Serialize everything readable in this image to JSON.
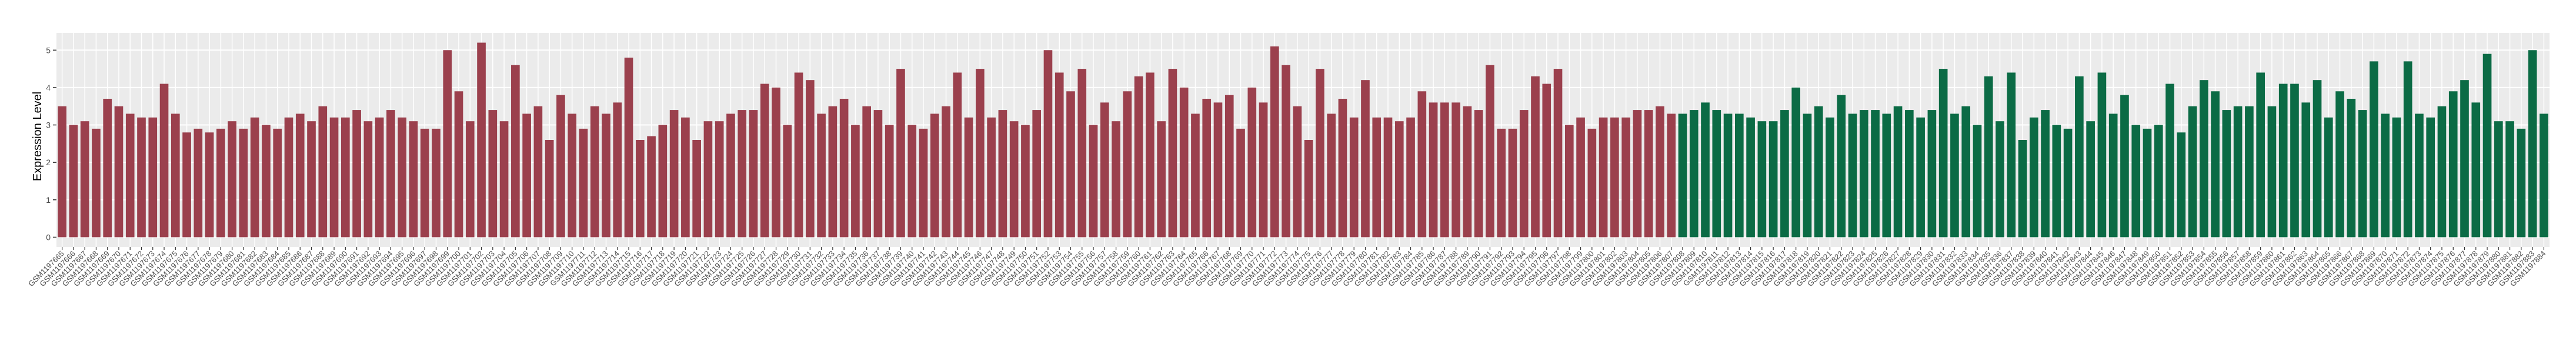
{
  "chart_data": {
    "type": "bar",
    "y_label": "Expression Level",
    "ylim": [
      -0.26,
      5.46
    ],
    "yticks": [
      0,
      1,
      2,
      3,
      4,
      5
    ],
    "grid": true,
    "panel_color": "#ebebeb",
    "series": [
      {
        "color": "#9b404d",
        "categories": [
          "GSM1197665",
          "GSM1197666",
          "GSM1197667",
          "GSM1197668",
          "GSM1197669",
          "GSM1197670",
          "GSM1197671",
          "GSM1197672",
          "GSM1197673",
          "GSM1197674",
          "GSM1197675",
          "GSM1197676",
          "GSM1197677",
          "GSM1197678",
          "GSM1197679",
          "GSM1197680",
          "GSM1197681",
          "GSM1197682",
          "GSM1197683",
          "GSM1197684",
          "GSM1197685",
          "GSM1197686",
          "GSM1197687",
          "GSM1197688",
          "GSM1197689",
          "GSM1197690",
          "GSM1197691",
          "GSM1197692",
          "GSM1197693",
          "GSM1197694",
          "GSM1197695",
          "GSM1197696",
          "GSM1197697",
          "GSM1197698",
          "GSM1197699",
          "GSM1197700",
          "GSM1197701",
          "GSM1197702",
          "GSM1197703",
          "GSM1197704",
          "GSM1197705",
          "GSM1197706",
          "GSM1197707",
          "GSM1197708",
          "GSM1197709",
          "GSM1197710",
          "GSM1197711",
          "GSM1197712",
          "GSM1197713",
          "GSM1197714",
          "GSM1197715",
          "GSM1197716",
          "GSM1197717",
          "GSM1197718",
          "GSM1197719",
          "GSM1197720",
          "GSM1197721",
          "GSM1197722",
          "GSM1197723",
          "GSM1197724",
          "GSM1197725",
          "GSM1197726",
          "GSM1197727",
          "GSM1197728",
          "GSM1197729",
          "GSM1197730",
          "GSM1197731",
          "GSM1197732",
          "GSM1197733",
          "GSM1197734",
          "GSM1197735",
          "GSM1197736",
          "GSM1197737",
          "GSM1197738",
          "GSM1197739",
          "GSM1197740",
          "GSM1197741",
          "GSM1197742",
          "GSM1197743",
          "GSM1197744",
          "GSM1197745",
          "GSM1197746",
          "GSM1197747",
          "GSM1197748",
          "GSM1197749",
          "GSM1197750",
          "GSM1197751",
          "GSM1197752",
          "GSM1197753",
          "GSM1197754",
          "GSM1197755",
          "GSM1197756",
          "GSM1197757",
          "GSM1197758",
          "GSM1197759",
          "GSM1197760",
          "GSM1197761",
          "GSM1197762",
          "GSM1197763",
          "GSM1197764",
          "GSM1197765",
          "GSM1197766",
          "GSM1197767",
          "GSM1197768",
          "GSM1197769",
          "GSM1197770",
          "GSM1197771",
          "GSM1197772",
          "GSM1197773",
          "GSM1197774",
          "GSM1197775",
          "GSM1197776",
          "GSM1197777",
          "GSM1197778",
          "GSM1197779",
          "GSM1197780",
          "GSM1197781",
          "GSM1197782",
          "GSM1197783",
          "GSM1197784",
          "GSM1197785",
          "GSM1197786",
          "GSM1197787",
          "GSM1197788",
          "GSM1197789",
          "GSM1197790",
          "GSM1197791",
          "GSM1197792",
          "GSM1197793",
          "GSM1197794",
          "GSM1197795",
          "GSM1197796",
          "GSM1197797",
          "GSM1197798",
          "GSM1197799",
          "GSM1197800",
          "GSM1197801",
          "GSM1197802",
          "GSM1197803",
          "GSM1197804",
          "GSM1197805",
          "GSM1197806",
          "GSM1197807"
        ],
        "values": [
          3.5,
          3.0,
          3.1,
          2.9,
          3.7,
          3.5,
          3.3,
          3.2,
          3.2,
          4.1,
          3.3,
          2.8,
          2.9,
          2.8,
          2.9,
          3.1,
          2.9,
          3.2,
          3.0,
          2.9,
          3.2,
          3.3,
          3.1,
          3.5,
          3.2,
          3.2,
          3.4,
          3.1,
          3.2,
          3.4,
          3.2,
          3.1,
          2.9,
          2.9,
          5.0,
          3.9,
          3.1,
          5.2,
          3.4,
          3.1,
          4.6,
          3.3,
          3.5,
          2.6,
          3.8,
          3.3,
          2.9,
          3.5,
          3.3,
          3.6,
          4.8,
          2.6,
          2.7,
          3.0,
          3.4,
          3.2,
          2.6,
          3.1,
          3.1,
          3.3,
          3.4,
          3.4,
          4.1,
          4.0,
          3.0,
          4.4,
          4.2,
          3.3,
          3.5,
          3.7,
          3.0,
          3.5,
          3.4,
          3.0,
          4.5,
          3.0,
          2.9,
          3.3,
          3.5,
          4.4,
          3.2,
          4.5,
          3.2,
          3.4,
          3.1,
          3.0,
          3.4,
          5.0,
          4.4,
          3.9,
          4.5,
          3.0,
          3.6,
          3.1,
          3.9,
          4.3,
          4.4,
          3.1,
          4.5,
          4.0,
          3.3,
          3.7,
          3.6,
          3.8,
          2.9,
          4.0,
          3.6,
          5.1,
          4.6,
          3.5,
          2.6,
          4.5,
          3.3,
          3.7,
          3.2,
          4.2,
          3.2,
          3.2,
          3.1,
          3.2,
          3.9,
          3.6,
          3.6,
          3.6,
          3.5,
          3.4,
          4.6,
          2.9,
          2.9,
          3.4,
          4.3,
          4.1,
          4.5,
          3.0,
          3.2,
          2.9,
          3.2,
          3.2,
          3.2,
          3.4,
          3.4,
          3.5,
          3.3
        ]
      },
      {
        "color": "#0b6b45",
        "categories": [
          "GSM1197808",
          "GSM1197809",
          "GSM1197810",
          "GSM1197811",
          "GSM1197812",
          "GSM1197813",
          "GSM1197814",
          "GSM1197815",
          "GSM1197816",
          "GSM1197817",
          "GSM1197818",
          "GSM1197819",
          "GSM1197820",
          "GSM1197821",
          "GSM1197822",
          "GSM1197823",
          "GSM1197824",
          "GSM1197825",
          "GSM1197826",
          "GSM1197827",
          "GSM1197828",
          "GSM1197829",
          "GSM1197830",
          "GSM1197831",
          "GSM1197832",
          "GSM1197833",
          "GSM1197834",
          "GSM1197835",
          "GSM1197836",
          "GSM1197837",
          "GSM1197838",
          "GSM1197839",
          "GSM1197840",
          "GSM1197841",
          "GSM1197842",
          "GSM1197843",
          "GSM1197844",
          "GSM1197845",
          "GSM1197846",
          "GSM1197847",
          "GSM1197848",
          "GSM1197849",
          "GSM1197850",
          "GSM1197851",
          "GSM1197852",
          "GSM1197853",
          "GSM1197854",
          "GSM1197855",
          "GSM1197856",
          "GSM1197857",
          "GSM1197858",
          "GSM1197859",
          "GSM1197860",
          "GSM1197861",
          "GSM1197862",
          "GSM1197863",
          "GSM1197864",
          "GSM1197865",
          "GSM1197866",
          "GSM1197867",
          "GSM1197868",
          "GSM1197869",
          "GSM1197870",
          "GSM1197871",
          "GSM1197872",
          "GSM1197873",
          "GSM1197874",
          "GSM1197875",
          "GSM1197876",
          "GSM1197877",
          "GSM1197878",
          "GSM1197879",
          "GSM1197880",
          "GSM1197881",
          "GSM1197882",
          "GSM1197883",
          "GSM1197884"
        ],
        "values": [
          3.3,
          3.4,
          3.6,
          3.4,
          3.3,
          3.3,
          3.2,
          3.1,
          3.1,
          3.4,
          4.0,
          3.3,
          3.5,
          3.2,
          3.8,
          3.3,
          3.4,
          3.4,
          3.3,
          3.5,
          3.4,
          3.2,
          3.4,
          4.5,
          3.3,
          3.5,
          3.0,
          4.3,
          3.1,
          4.4,
          2.6,
          3.2,
          3.4,
          3.0,
          2.9,
          4.3,
          3.1,
          4.4,
          3.3,
          3.8,
          3.0,
          2.9,
          3.0,
          4.1,
          2.8,
          3.5,
          4.2,
          3.9,
          3.4,
          3.5,
          3.5,
          4.4,
          3.5,
          4.1,
          4.1,
          3.6,
          4.2,
          3.2,
          3.9,
          3.7,
          3.4,
          4.7,
          3.3,
          3.2,
          4.7,
          3.3,
          3.2,
          3.5,
          3.9,
          4.2,
          3.6,
          4.9,
          3.1,
          3.1,
          2.9,
          5.0,
          3.3
        ]
      }
    ]
  }
}
